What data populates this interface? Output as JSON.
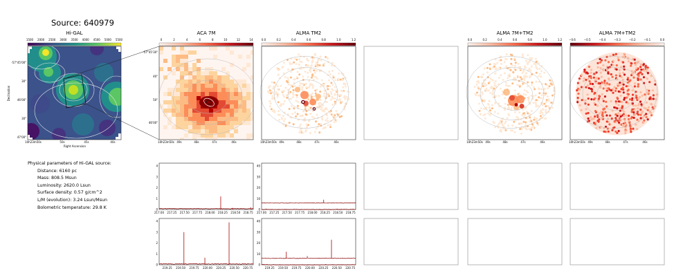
{
  "source_title": "Source: 640979",
  "colors": {
    "frame": "#888888",
    "contour": "#b8b8b8",
    "spectrum": "#b22222",
    "spectrum_baseline": "#8b0000",
    "viridis": [
      "#440154",
      "#3b528b",
      "#21918c",
      "#5ec962",
      "#fde725"
    ],
    "reds": [
      "#fff5f0",
      "#fcbba1",
      "#fb6a4a",
      "#cb181d",
      "#67000d"
    ]
  },
  "params": {
    "heading": "Physical parameters of Hi-GAL source:",
    "lines": [
      "Distance: 6160 pc",
      "Mass: 808.5 Msun",
      "Luminosity: 2620.0 Lsun",
      "Surface density: 0.57 g/cm^2",
      "L/M (evolution): 3.24 Lsun/Msun",
      "Bolometric temperature: 29.8 K"
    ]
  },
  "chart_data": [
    {
      "type": "heatmap",
      "id": "higal",
      "title": "Hi-GAL",
      "colormap": "viridis",
      "colorbar_ticks": [
        "1500",
        "2000",
        "2500",
        "3000",
        "3500",
        "4000",
        "4500",
        "5000",
        "5500"
      ],
      "xlabel": "Right Ascension",
      "ylabel": "Declination",
      "x_ticks": [
        "10h23m50s",
        "50s",
        "45s",
        "40s"
      ],
      "y_ticks": [
        "-57°45'00\"",
        "30\"",
        "46'00\"",
        "30\"",
        "47'00\""
      ]
    },
    {
      "type": "heatmap",
      "id": "aca7m",
      "title": "ACA 7M",
      "colormap": "OrRd",
      "colorbar_ticks": [
        "0",
        "2",
        "4",
        "6",
        "8",
        "10",
        "12",
        "14"
      ],
      "x_ticks": [
        "10h23m50s",
        "49s",
        "48s",
        "47s",
        "46s"
      ],
      "y_ticks": [
        "-57°45'30\"",
        "40\"",
        "50\"",
        "46'00\""
      ]
    },
    {
      "type": "heatmap",
      "id": "tm2",
      "title": "ALMA TM2",
      "colormap": "OrRd",
      "colorbar_ticks": [
        "0.0",
        "0.2",
        "0.4",
        "0.6",
        "0.8",
        "1.0",
        "1.2"
      ],
      "x_ticks": [
        "10h23m50s",
        "49s",
        "48s",
        "47s",
        "46s"
      ]
    },
    {
      "type": "heatmap",
      "id": "combo",
      "title": "ALMA 7M+TM2",
      "colormap": "OrRd",
      "colorbar_ticks": [
        "0.0",
        "0.2",
        "0.4",
        "0.6",
        "0.8",
        "1.0",
        "1.2"
      ],
      "x_ticks": [
        "10h23m50s",
        "49s",
        "48s",
        "47s",
        "46s"
      ]
    },
    {
      "type": "heatmap",
      "id": "resid",
      "title": "ALMA 7M+TM2",
      "colormap": "Reds_r",
      "colorbar_ticks": [
        "−0.6",
        "−0.5",
        "−0.4",
        "−0.3",
        "−0.2",
        "−0.1",
        "0.0"
      ],
      "x_ticks": [
        "10h23m50s",
        "49s",
        "48s",
        "47s",
        "46s"
      ]
    },
    {
      "type": "line",
      "id": "spec_aca_1",
      "x_ticks": [
        "217.00",
        "217.25",
        "217.50",
        "217.75",
        "218.00",
        "218.25",
        "218.50",
        "218.75"
      ],
      "y_ticks": [
        "0",
        "1",
        "2",
        "3",
        "4"
      ],
      "ylim": [
        0,
        4
      ],
      "x": [
        217.0,
        218.21,
        218.44,
        218.8
      ],
      "values": [
        0.05,
        1.2,
        0.15,
        0.2
      ]
    },
    {
      "type": "line",
      "id": "spec_tm2_1",
      "x_ticks": [
        "217.00",
        "217.25",
        "217.50",
        "217.75",
        "218.00",
        "218.25",
        "218.50",
        "218.75"
      ],
      "y_ticks": [
        "0",
        "10",
        "20",
        "30",
        "40"
      ],
      "ylim": [
        0,
        40
      ],
      "baselines": [
        6,
        0
      ],
      "x": [
        218.22
      ],
      "values": [
        9
      ]
    },
    {
      "type": "line",
      "id": "spec_aca_2",
      "x_ticks": [
        "219.25",
        "219.50",
        "219.75",
        "220.00",
        "220.25",
        "220.50",
        "220.75"
      ],
      "y_ticks": [
        "0",
        "1",
        "2",
        "3",
        "4"
      ],
      "ylim": [
        0,
        4
      ],
      "x": [
        219.56,
        219.95,
        220.4
      ],
      "values": [
        3.0,
        0.65,
        3.9
      ]
    },
    {
      "type": "line",
      "id": "spec_tm2_2",
      "x_ticks": [
        "219.25",
        "219.50",
        "219.75",
        "220.00",
        "220.25",
        "220.50",
        "220.75"
      ],
      "y_ticks": [
        "0",
        "10",
        "20",
        "30",
        "40"
      ],
      "ylim": [
        0,
        40
      ],
      "baselines": [
        6,
        0
      ],
      "x": [
        219.56,
        219.95,
        220.4
      ],
      "values": [
        12,
        8,
        23
      ]
    }
  ]
}
